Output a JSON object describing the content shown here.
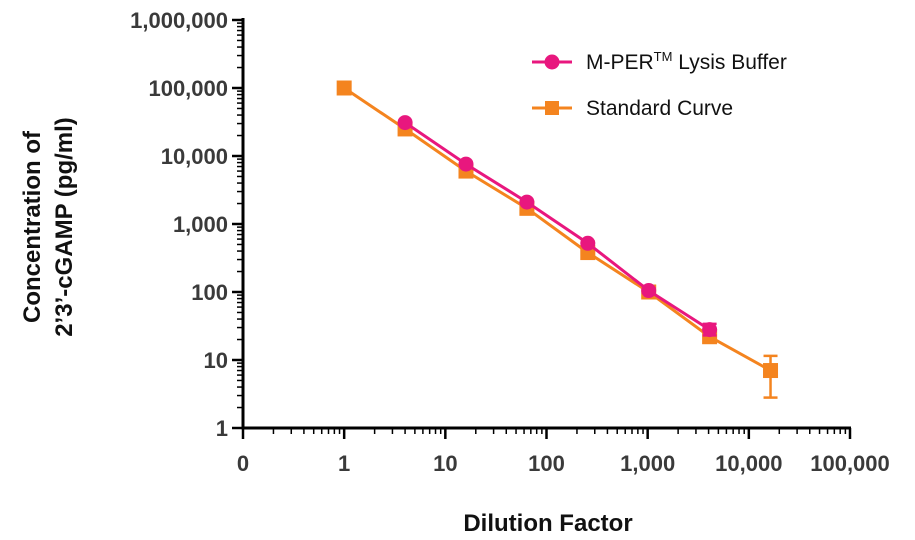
{
  "chart_data": {
    "type": "line",
    "title": "",
    "xlabel": "Dilution Factor",
    "ylabel_lines": [
      "Concentration of",
      "2’3’-cGAMP (pg/ml)"
    ],
    "x_scale": "log",
    "y_scale": "log",
    "xlim": [
      0.1,
      100000
    ],
    "ylim": [
      1,
      1000000
    ],
    "x_ticks": [
      {
        "value": 0.1,
        "label": "0"
      },
      {
        "value": 1,
        "label": "1"
      },
      {
        "value": 10,
        "label": "10"
      },
      {
        "value": 100,
        "label": "100"
      },
      {
        "value": 1000,
        "label": "1,000"
      },
      {
        "value": 10000,
        "label": "10,000"
      },
      {
        "value": 100000,
        "label": "100,000"
      }
    ],
    "y_ticks": [
      {
        "value": 1,
        "label": "1"
      },
      {
        "value": 10,
        "label": "10"
      },
      {
        "value": 100,
        "label": "100"
      },
      {
        "value": 1000,
        "label": "1,000"
      },
      {
        "value": 10000,
        "label": "10,000"
      },
      {
        "value": 100000,
        "label": "100,000"
      },
      {
        "value": 1000000,
        "label": "1,000,000"
      }
    ],
    "legend_position": "top-right",
    "grid": false,
    "series": [
      {
        "name": "M-PER",
        "name_superscript": "TM",
        "name_suffix": " Lysis Buffer",
        "color": "#e8177e",
        "marker": "circle",
        "x": [
          4,
          16,
          64,
          256,
          1024,
          4096
        ],
        "y": [
          31000,
          7600,
          2100,
          520,
          105,
          28
        ],
        "err_low": [
          29000,
          7200,
          2000,
          490,
          98,
          23
        ],
        "err_high": [
          33000,
          8000,
          2200,
          550,
          112,
          34
        ]
      },
      {
        "name": "Standard Curve",
        "color": "#f4841f",
        "marker": "square",
        "x": [
          1,
          4,
          16,
          64,
          256,
          1024,
          4096,
          16384
        ],
        "y": [
          100000,
          25000,
          6000,
          1700,
          380,
          100,
          22,
          7
        ],
        "err_low": [
          97000,
          24000,
          5800,
          1650,
          365,
          96,
          19,
          2.8
        ],
        "err_high": [
          103000,
          26000,
          6200,
          1750,
          395,
          104,
          25,
          11.5
        ]
      }
    ]
  }
}
